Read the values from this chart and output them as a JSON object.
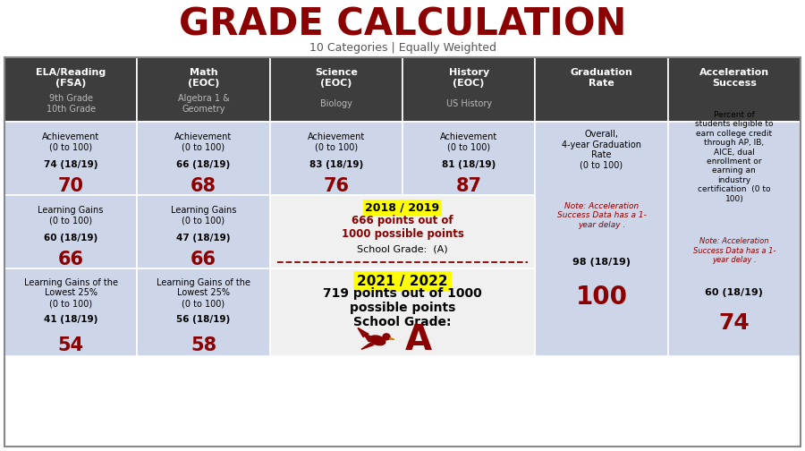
{
  "title": "GRADE CALCULATION",
  "subtitle": "10 Categories | Equally Weighted",
  "title_color": "#8B0000",
  "subtitle_color": "#555555",
  "header_bg": "#3d3d3d",
  "row_bg": "#cdd5e8",
  "cell_white": "#f0f0f0",
  "red_color": "#8B0000",
  "yellow_color": "#ffff00",
  "cols": [
    {
      "header1": "ELA/Reading",
      "header2": "(FSA)",
      "subheader": "9th Grade\n10th Grade",
      "rows": [
        {
          "label": "Achievement\n(0 to 100)",
          "score": "74 (18/19)",
          "val": "70"
        },
        {
          "label": "Learning Gains\n(0 to 100)",
          "score": "60 (18/19)",
          "val": "66"
        },
        {
          "label": "Learning Gains of the\nLowest 25%\n(0 to 100)",
          "score": "41 (18/19)",
          "val": "54"
        }
      ]
    },
    {
      "header1": "Math",
      "header2": "(EOC)",
      "subheader": "Algebra 1 &\nGeometry",
      "rows": [
        {
          "label": "Achievement\n(0 to 100)",
          "score": "66 (18/19)",
          "val": "68"
        },
        {
          "label": "Learning Gains\n(0 to 100)",
          "score": "47 (18/19)",
          "val": "66"
        },
        {
          "label": "Learning Gains of the\nLowest 25%\n(0 to 100)",
          "score": "56 (18/19)",
          "val": "58"
        }
      ]
    },
    {
      "header1": "Science",
      "header2": "(EOC)",
      "subheader": "Biology",
      "rows": [
        {
          "label": "Achievement\n(0 to 100)",
          "score": "83 (18/19)",
          "val": "76"
        },
        {
          "type": "2019_block"
        },
        {
          "type": "2022_block"
        }
      ]
    },
    {
      "header1": "History",
      "header2": "(EOC)",
      "subheader": "US History",
      "rows": [
        {
          "label": "Achievement\n(0 to 100)",
          "score": "81 (18/19)",
          "val": "87"
        },
        {
          "type": "span_science"
        },
        {
          "type": "span_science"
        }
      ]
    },
    {
      "header1": "Graduation",
      "header2": "Rate",
      "subheader": "",
      "rows": [
        {
          "type": "grad_full"
        },
        {
          "type": "grad_merged"
        },
        {
          "type": "grad_merged"
        }
      ]
    },
    {
      "header1": "Acceleration",
      "header2": "Success",
      "subheader": "",
      "rows": [
        {
          "type": "accel_full"
        },
        {
          "type": "accel_merged"
        },
        {
          "type": "accel_merged"
        }
      ]
    }
  ],
  "grad_label": "Overall,\n4-year Graduation\nRate\n(0 to 100)",
  "grad_note": "Note: Acceleration\nSuccess Data has a 1-\nyear delay .",
  "grad_score": "98 (18/19)",
  "grad_val": "100",
  "accel_label": "Percent of\nstudents eligible to\nearn college credit\nthrough AP, IB,\nAICE, dual\nenrollment or\nearning an\nindustry\ncertification  (0 to\n100)",
  "accel_note": "Note: Acceleration\nSuccess Data has a 1-\nyear delay .",
  "accel_score": "60 (18/19)",
  "accel_val": "74"
}
